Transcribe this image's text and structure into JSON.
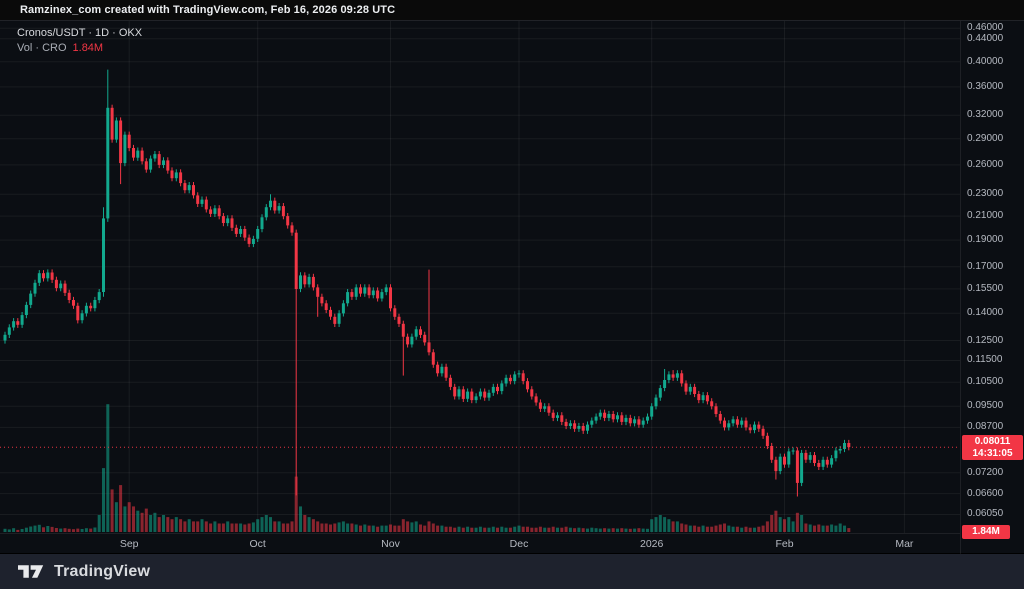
{
  "topbar": {
    "attribution": "Ramzinex_com created with TradingView.com, Feb 16, 2026 09:28 UTC"
  },
  "legend": {
    "symbol_row": "Cronos/USDT · 1D · OKX",
    "volume_row_label": "Vol · CRO",
    "volume_row_value": "1.84M"
  },
  "footer": {
    "brand": "TradingView"
  },
  "colors": {
    "up": "#12a98e",
    "down": "#f23645",
    "vol_up": "rgba(18,169,142,0.55)",
    "vol_down": "rgba(242,54,69,0.55)",
    "grid": "rgba(255,255,255,0.06)",
    "axis_text": "#b6bac2",
    "label_bg": "#f23645",
    "background": "#0b0e13",
    "footer_bg": "#1e222d"
  },
  "price_axis": {
    "ticks": [
      {
        "value": 0.46,
        "label": "0.46000"
      },
      {
        "value": 0.44,
        "label": "0.44000"
      },
      {
        "value": 0.4,
        "label": "0.40000"
      },
      {
        "value": 0.36,
        "label": "0.36000"
      },
      {
        "value": 0.32,
        "label": "0.32000"
      },
      {
        "value": 0.29,
        "label": "0.29000"
      },
      {
        "value": 0.26,
        "label": "0.26000"
      },
      {
        "value": 0.23,
        "label": "0.23000"
      },
      {
        "value": 0.21,
        "label": "0.21000"
      },
      {
        "value": 0.19,
        "label": "0.19000"
      },
      {
        "value": 0.17,
        "label": "0.17000"
      },
      {
        "value": 0.155,
        "label": "0.15500"
      },
      {
        "value": 0.14,
        "label": "0.14000"
      },
      {
        "value": 0.125,
        "label": "0.12500"
      },
      {
        "value": 0.115,
        "label": "0.11500"
      },
      {
        "value": 0.105,
        "label": "0.10500"
      },
      {
        "value": 0.095,
        "label": "0.09500"
      },
      {
        "value": 0.087,
        "label": "0.08700"
      },
      {
        "value": 0.072,
        "label": "0.07200"
      },
      {
        "value": 0.066,
        "label": "0.06600"
      },
      {
        "value": 0.0605,
        "label": "0.06050"
      }
    ],
    "last_price": {
      "value": 0.08011,
      "label": "0.08011",
      "countdown": "14:31:05"
    },
    "volume_badge": "1.84M"
  },
  "time_axis": {
    "labels": [
      {
        "label": "Sep",
        "day": 29
      },
      {
        "label": "Oct",
        "day": 59
      },
      {
        "label": "Nov",
        "day": 90
      },
      {
        "label": "Dec",
        "day": 120
      },
      {
        "label": "2026",
        "day": 151
      },
      {
        "label": "Feb",
        "day": 182
      },
      {
        "label": "Mar",
        "day": 210
      }
    ]
  },
  "chart_data": {
    "type": "candlestick",
    "title": "Cronos/USDT · 1D · OKX",
    "symbol": "Cronos/USDT",
    "interval": "1D",
    "exchange": "OKX",
    "scale": "log",
    "ylim": [
      0.058,
      0.47
    ],
    "grid": true,
    "last_close": 0.08011,
    "first_open": 0.125,
    "default_wick_pct": 1.3,
    "closes": [
      0.128,
      0.132,
      0.1355,
      0.1335,
      0.139,
      0.145,
      0.152,
      0.159,
      0.1655,
      0.162,
      0.166,
      0.161,
      0.1555,
      0.1585,
      0.1525,
      0.148,
      0.1445,
      0.136,
      0.14,
      0.1445,
      0.143,
      0.148,
      0.153,
      0.208,
      0.33,
      0.289,
      0.313,
      0.262,
      0.295,
      0.279,
      0.268,
      0.276,
      0.264,
      0.255,
      0.267,
      0.272,
      0.26,
      0.265,
      0.254,
      0.246,
      0.252,
      0.241,
      0.234,
      0.239,
      0.229,
      0.221,
      0.225,
      0.216,
      0.212,
      0.217,
      0.21,
      0.204,
      0.208,
      0.2,
      0.195,
      0.199,
      0.192,
      0.187,
      0.191,
      0.199,
      0.209,
      0.218,
      0.224,
      0.215,
      0.219,
      0.21,
      0.202,
      0.196,
      0.155,
      0.164,
      0.158,
      0.163,
      0.156,
      0.15,
      0.146,
      0.142,
      0.138,
      0.134,
      0.14,
      0.146,
      0.153,
      0.15,
      0.156,
      0.152,
      0.156,
      0.151,
      0.154,
      0.149,
      0.153,
      0.156,
      0.143,
      0.138,
      0.134,
      0.127,
      0.123,
      0.127,
      0.131,
      0.128,
      0.124,
      0.119,
      0.113,
      0.109,
      0.112,
      0.107,
      0.103,
      0.099,
      0.102,
      0.098,
      0.101,
      0.0975,
      0.099,
      0.101,
      0.0985,
      0.1005,
      0.103,
      0.1012,
      0.1045,
      0.107,
      0.1055,
      0.1085,
      0.109,
      0.1055,
      0.102,
      0.099,
      0.0965,
      0.094,
      0.095,
      0.0925,
      0.0905,
      0.0915,
      0.089,
      0.0875,
      0.0885,
      0.0865,
      0.0875,
      0.0858,
      0.088,
      0.0895,
      0.091,
      0.0925,
      0.0905,
      0.092,
      0.09,
      0.0915,
      0.089,
      0.0905,
      0.0885,
      0.09,
      0.088,
      0.0895,
      0.091,
      0.095,
      0.0985,
      0.1025,
      0.106,
      0.1085,
      0.107,
      0.109,
      0.1045,
      0.101,
      0.103,
      0.1,
      0.0975,
      0.0995,
      0.097,
      0.095,
      0.092,
      0.0895,
      0.087,
      0.0885,
      0.09,
      0.088,
      0.0895,
      0.087,
      0.086,
      0.088,
      0.0865,
      0.084,
      0.0805,
      0.076,
      0.0725,
      0.077,
      0.0745,
      0.0787,
      0.079,
      0.069,
      0.0782,
      0.076,
      0.0775,
      0.075,
      0.0738,
      0.076,
      0.0745,
      0.0765,
      0.079,
      0.0795,
      0.0815,
      0.08011
    ],
    "wick_overrides": {
      "23": {
        "h": 0.218,
        "l": 0.15
      },
      "24": {
        "h": 0.387,
        "l": 0.205
      },
      "27": {
        "l": 0.24
      },
      "62": {
        "h": 0.23
      },
      "68": {
        "l": 0.0655
      },
      "73": {
        "l": 0.138
      },
      "93": {
        "l": 0.108
      },
      "99": {
        "h": 0.168
      },
      "154": {
        "h": 0.111
      },
      "156": {
        "h": 0.1105
      },
      "180": {
        "l": 0.07
      },
      "185": {
        "l": 0.0652
      }
    },
    "volumes_millions": [
      1.5,
      1.2,
      1.8,
      1.0,
      1.4,
      2.0,
      2.6,
      3.0,
      3.4,
      2.2,
      2.8,
      2.4,
      1.9,
      1.6,
      1.8,
      1.5,
      1.3,
      1.6,
      1.4,
      1.8,
      1.6,
      2.1,
      8,
      30,
      60,
      20,
      14,
      22,
      12,
      14,
      12,
      10,
      9,
      11,
      8,
      9,
      7,
      8,
      7,
      6,
      7,
      6,
      5,
      6,
      5,
      5,
      6,
      5,
      4,
      5,
      4,
      4,
      5,
      4,
      4,
      4,
      3.5,
      4,
      4.5,
      6,
      7,
      8,
      7,
      5,
      5,
      4,
      4,
      5,
      26,
      12,
      8,
      7,
      6,
      5,
      4,
      4,
      3.5,
      4,
      4.5,
      5,
      4,
      4,
      3.5,
      3,
      3.5,
      3,
      3,
      2.5,
      3,
      3,
      3.5,
      3,
      3,
      6,
      5,
      4.5,
      5,
      3.5,
      3,
      5,
      4,
      3,
      3,
      2.5,
      2.5,
      2,
      2.5,
      2,
      2.5,
      2,
      2,
      2.5,
      2,
      2,
      2.5,
      2,
      2.5,
      2,
      2,
      2.5,
      3,
      2.5,
      2.5,
      2,
      2,
      2.5,
      2,
      2,
      2.5,
      2,
      2,
      2.5,
      2,
      1.8,
      2,
      1.8,
      1.6,
      2,
      1.8,
      1.6,
      1.8,
      1.6,
      1.8,
      1.6,
      1.8,
      1.6,
      1.5,
      1.6,
      1.8,
      1.6,
      1.5,
      6,
      7,
      8,
      7,
      6,
      5,
      5,
      4,
      3.5,
      3,
      3,
      2.5,
      3,
      2.5,
      2.5,
      3,
      3.5,
      4,
      3,
      2.5,
      2.5,
      2,
      2.5,
      2,
      2,
      2.5,
      3,
      5,
      8,
      10,
      7,
      6,
      7,
      5,
      9,
      8,
      4,
      3.5,
      3,
      3.5,
      3,
      3,
      3.5,
      3,
      4,
      3,
      1.84
    ],
    "current_volume_label": "1.84M",
    "legend_note": "Vol · CRO"
  }
}
